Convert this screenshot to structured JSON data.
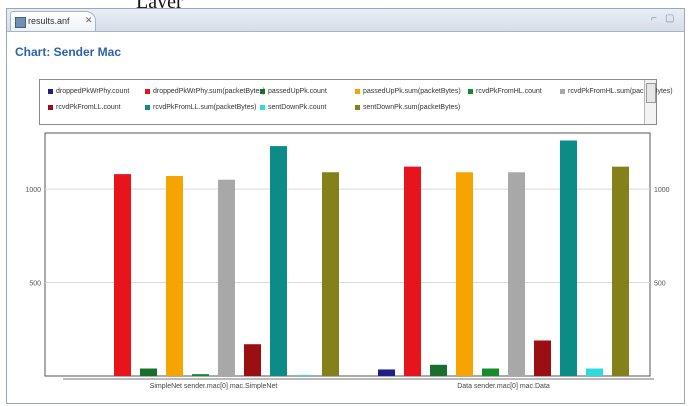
{
  "page_caption": "Layer",
  "window": {
    "tab_label": "results.anf",
    "tab_close": "✕",
    "minimize": "⌐",
    "maximize": "▢"
  },
  "colors": {
    "accent_title": "#2a62a8",
    "grid": "#d9d9d9",
    "axis": "#555555"
  },
  "icons": [
    "results-file-icon",
    "close-icon",
    "minimize-icon",
    "maximize-icon"
  ],
  "chart_data": {
    "type": "bar",
    "title": "Chart: Sender Mac",
    "xlabel": "",
    "ylabel": "",
    "ylim": [
      0,
      1300
    ],
    "yticks": [
      {
        "value": 500,
        "label": "500"
      },
      {
        "value": 1000,
        "label": "1000"
      }
    ],
    "grid": true,
    "legend_position": "top",
    "categories": [
      "SimpleNet sender.mac[0] mac.SimpleNet",
      "Data sender.mac[0] mac.Data"
    ],
    "series": [
      {
        "name": "droppedPkWrPhy.count",
        "color": "#1f1f8c",
        "values": [
          0,
          35
        ]
      },
      {
        "name": "droppedPkWrPhy.sum(packetBytes)",
        "color": "#e8141b",
        "values": [
          1080,
          1120
        ]
      },
      {
        "name": "passedUpPk.count",
        "color": "#1a6f2c",
        "values": [
          40,
          60
        ]
      },
      {
        "name": "passedUpPk.sum(packetBytes)",
        "color": "#f5a400",
        "values": [
          1070,
          1090
        ]
      },
      {
        "name": "rcvdPkFromHL.count",
        "color": "#178a2c",
        "values": [
          10,
          40
        ]
      },
      {
        "name": "rcvdPkFromHL.sum(packetBytes)",
        "color": "#a8a8a8",
        "values": [
          1050,
          1090
        ]
      },
      {
        "name": "rcvdPkFromLL.count",
        "color": "#9b0f12",
        "values": [
          170,
          190
        ]
      },
      {
        "name": "rcvdPkFromLL.sum(packetBytes)",
        "color": "#0c8c86",
        "values": [
          1230,
          1260
        ]
      },
      {
        "name": "sentDownPk.count",
        "color": "#2fd9de",
        "values": [
          5,
          40
        ]
      },
      {
        "name": "sentDownPk.sum(packetBytes)",
        "color": "#84801a",
        "values": [
          1090,
          1120
        ]
      }
    ]
  }
}
